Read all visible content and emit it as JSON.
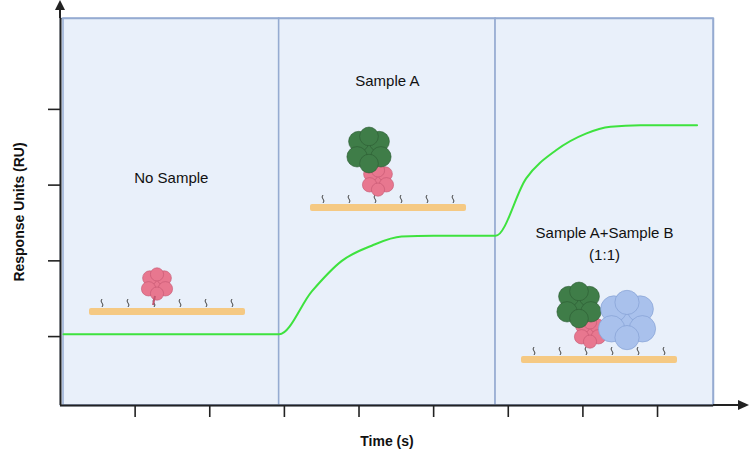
{
  "chart_data": {
    "type": "line",
    "x_label": "Time (s)",
    "y_label": "Response Units (RU)",
    "xlim": [
      0,
      8.75
    ],
    "ylim": [
      0.09,
      5.2
    ],
    "xticks": [
      1,
      2,
      3,
      4,
      5,
      6,
      7,
      8
    ],
    "yticks": [
      1,
      2,
      3,
      4
    ],
    "tick_labels": false,
    "grid": false,
    "color": "#3ee23e",
    "x": [
      0.04,
      2.93,
      3.37,
      3.77,
      4.17,
      4.57,
      5.0,
      5.83,
      6.24,
      6.64,
      7.04,
      7.37,
      7.77,
      8.53
    ],
    "values": [
      1.03,
      1.03,
      1.6,
      2.0,
      2.2,
      2.32,
      2.33,
      2.33,
      3.09,
      3.46,
      3.68,
      3.77,
      3.79,
      3.79
    ],
    "regions": [
      {
        "label": [
          "No Sample"
        ],
        "x": [
          0.04,
          2.93
        ]
      },
      {
        "label": [
          "Sample A"
        ],
        "x": [
          2.93,
          5.83
        ]
      },
      {
        "label": [
          "Sample A+Sample B",
          "(1:1)"
        ],
        "x": [
          5.83,
          8.75
        ]
      }
    ]
  }
}
